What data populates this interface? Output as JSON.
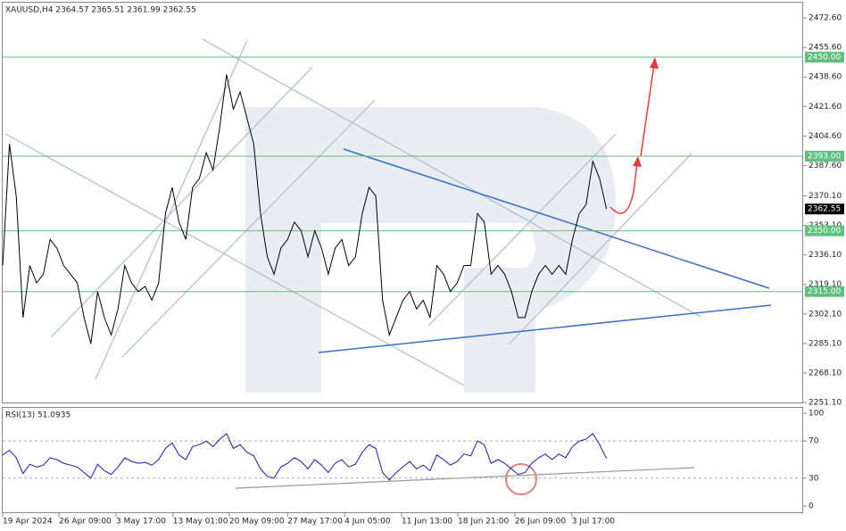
{
  "chart_data": [
    {
      "type": "line",
      "title": "XAUUSD,H4 2364.57 2365.51 2361.99 2362.55",
      "x": [
        0,
        1,
        2,
        3,
        4,
        5,
        6,
        7,
        8,
        9,
        10,
        11,
        12,
        13,
        14,
        15,
        16,
        17,
        18,
        19,
        20,
        21,
        22,
        23,
        24,
        25,
        26,
        27,
        28,
        29,
        30,
        31,
        32,
        33,
        34,
        35,
        36,
        37,
        38,
        39,
        40,
        41,
        42,
        43,
        44,
        45,
        46,
        47,
        48,
        49,
        50,
        51,
        52,
        53,
        54,
        55,
        56,
        57,
        58,
        59,
        60,
        61,
        62,
        63,
        64,
        65,
        66,
        67,
        68,
        69,
        70,
        71,
        72,
        73,
        74,
        75,
        76,
        77,
        78,
        79,
        80,
        81,
        82,
        83,
        84,
        85,
        86,
        87,
        88,
        89
      ],
      "series": [
        {
          "color": "#000000",
          "values": [
            2330,
            2400,
            2370,
            2300,
            2330,
            2320,
            2325,
            2345,
            2340,
            2330,
            2325,
            2320,
            2300,
            2285,
            2315,
            2300,
            2290,
            2305,
            2330,
            2320,
            2315,
            2318,
            2310,
            2320,
            2360,
            2375,
            2355,
            2345,
            2375,
            2380,
            2395,
            2385,
            2410,
            2440,
            2420,
            2430,
            2415,
            2400,
            2360,
            2335,
            2325,
            2340,
            2345,
            2355,
            2350,
            2335,
            2350,
            2340,
            2325,
            2340,
            2345,
            2330,
            2335,
            2360,
            2375,
            2370,
            2310,
            2290,
            2300,
            2310,
            2315,
            2305,
            2310,
            2300,
            2330,
            2325,
            2315,
            2320,
            2330,
            2330,
            2360,
            2355,
            2325,
            2330,
            2325,
            2315,
            2300,
            2300,
            2315,
            2325,
            2330,
            2325,
            2330,
            2325,
            2345,
            2360,
            2365,
            2390,
            2380,
            2362.55
          ]
        }
      ],
      "xlim": [
        0,
        118
      ],
      "xticks": [
        {
          "value": 0,
          "label": "19 Apr 2024"
        },
        {
          "value": 8.3,
          "label": "26 Apr 09:00"
        },
        {
          "value": 16.7,
          "label": "3 May 17:00"
        },
        {
          "value": 25.1,
          "label": "13 May 01:00"
        },
        {
          "value": 33.4,
          "label": "20 May 09:00"
        },
        {
          "value": 42,
          "label": "27 May 17:00"
        },
        {
          "value": 50.4,
          "label": "4 Jun 05:00"
        },
        {
          "value": 58.8,
          "label": "11 Jun 13:00"
        },
        {
          "value": 67.1,
          "label": "18 Jun 21:00"
        },
        {
          "value": 75.5,
          "label": "26 Jun 09:00"
        },
        {
          "value": 83.9,
          "label": "3 Jul 17:00"
        }
      ],
      "ylim": [
        2250.6,
        2481.9
      ],
      "yticks": [
        {
          "value": 2472.6,
          "label": "2472.60"
        },
        {
          "value": 2455.6,
          "label": "2455.60"
        },
        {
          "value": 2438.6,
          "label": "2438.60"
        },
        {
          "value": 2421.6,
          "label": "2421.60"
        },
        {
          "value": 2404.6,
          "label": "2404.60"
        },
        {
          "value": 2387.6,
          "label": "2387.60"
        },
        {
          "value": 2370.1,
          "label": "2370.10"
        },
        {
          "value": 2353.1,
          "label": "2353.10"
        },
        {
          "value": 2336.1,
          "label": "2336.10"
        },
        {
          "value": 2319.1,
          "label": "2319.10"
        },
        {
          "value": 2302.1,
          "label": "2302.10"
        },
        {
          "value": 2285.1,
          "label": "2285.10"
        },
        {
          "value": 2268.1,
          "label": "2268.10"
        },
        {
          "value": 2251.1,
          "label": "2251.10"
        }
      ],
      "levels": [
        {
          "value": 2450,
          "label": "2450.00"
        },
        {
          "value": 2393,
          "label": "2393.00"
        },
        {
          "value": 2350,
          "label": "2350.00"
        },
        {
          "value": 2315,
          "label": "2315.00"
        }
      ],
      "level_color": "#5fbf7f",
      "last_price": 2362.55
    },
    {
      "type": "line",
      "title": "RSI(13) 51.0935",
      "x": [
        0,
        1,
        2,
        3,
        4,
        5,
        6,
        7,
        8,
        9,
        10,
        11,
        12,
        13,
        14,
        15,
        16,
        17,
        18,
        19,
        20,
        21,
        22,
        23,
        24,
        25,
        26,
        27,
        28,
        29,
        30,
        31,
        32,
        33,
        34,
        35,
        36,
        37,
        38,
        39,
        40,
        41,
        42,
        43,
        44,
        45,
        46,
        47,
        48,
        49,
        50,
        51,
        52,
        53,
        54,
        55,
        56,
        57,
        58,
        59,
        60,
        61,
        62,
        63,
        64,
        65,
        66,
        67,
        68,
        69,
        70,
        71,
        72,
        73,
        74,
        75,
        76,
        77,
        78,
        79,
        80,
        81,
        82,
        83,
        84,
        85,
        86,
        87,
        88,
        89
      ],
      "series": [
        {
          "color": "#1a1aa0",
          "values": [
            55,
            60,
            52,
            35,
            45,
            42,
            44,
            52,
            50,
            46,
            44,
            42,
            36,
            30,
            45,
            38,
            34,
            42,
            52,
            48,
            46,
            47,
            44,
            50,
            62,
            68,
            55,
            50,
            64,
            66,
            70,
            64,
            72,
            78,
            62,
            66,
            58,
            54,
            40,
            32,
            30,
            42,
            46,
            52,
            48,
            40,
            50,
            44,
            36,
            46,
            50,
            42,
            45,
            58,
            66,
            62,
            36,
            28,
            36,
            42,
            48,
            40,
            44,
            38,
            55,
            50,
            44,
            48,
            56,
            54,
            70,
            66,
            46,
            50,
            46,
            40,
            34,
            36,
            46,
            52,
            56,
            50,
            56,
            52,
            64,
            70,
            72,
            78,
            66,
            51.0935
          ]
        }
      ],
      "xlim": [
        0,
        118
      ],
      "ylim": [
        -7.7,
        106.7
      ],
      "yticks": [
        100,
        70,
        30,
        0
      ],
      "levels": [
        70,
        30
      ]
    }
  ]
}
